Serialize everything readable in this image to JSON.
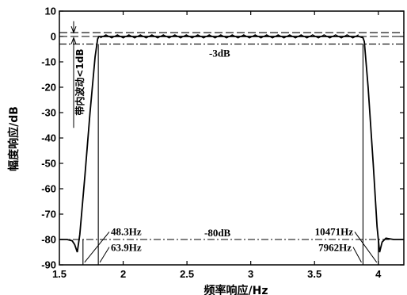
{
  "chart_data": {
    "type": "line",
    "title": "",
    "xlabel": "频率响应/Hz",
    "ylabel": "幅度响应/dB",
    "xlim": [
      1.5,
      4.2
    ],
    "ylim": [
      -90,
      10
    ],
    "x_ticks": [
      "1.5",
      "2",
      "2.5",
      "3",
      "3.5",
      "4"
    ],
    "y_ticks": [
      "10",
      "0",
      "-10",
      "-20",
      "-30",
      "-40",
      "-50",
      "-60",
      "-70",
      "-80",
      "-90"
    ],
    "grid": false,
    "series": [
      {
        "style": "solid",
        "x": [
          1.5,
          1.56,
          1.6,
          1.62,
          1.64,
          1.66,
          1.7,
          1.74,
          1.78,
          1.8,
          1.81,
          1.85,
          1.95,
          2.2,
          2.5,
          2.8,
          3.1,
          3.4,
          3.7,
          3.85,
          3.88,
          3.89,
          3.92,
          3.96,
          3.99,
          4.01,
          4.03,
          4.06,
          4.12,
          4.2
        ],
        "y": [
          -80,
          -80,
          -80.5,
          -82,
          -85,
          -78,
          -55,
          -30,
          -8,
          -1,
          0,
          0,
          0,
          0,
          0,
          0,
          0,
          0,
          0,
          0,
          -0.5,
          -2,
          -20,
          -50,
          -75,
          -85,
          -81,
          -79.5,
          -80,
          -80
        ]
      }
    ],
    "reference_lines": [
      {
        "y": 1.5,
        "style": "dashed"
      },
      {
        "y": 0,
        "style": "dashed"
      },
      {
        "y": -3,
        "style": "dashdot",
        "label": "-3dB"
      },
      {
        "y": -80,
        "style": "dashdot",
        "label": "-80dB"
      }
    ],
    "annotations": {
      "ripple": "带内波动<1dB",
      "db3": "-3dB",
      "db80": "-80dB",
      "left_80": "48.3Hz",
      "left_3": "63.9Hz",
      "right_80": "10471Hz",
      "right_3": "7962Hz"
    }
  }
}
